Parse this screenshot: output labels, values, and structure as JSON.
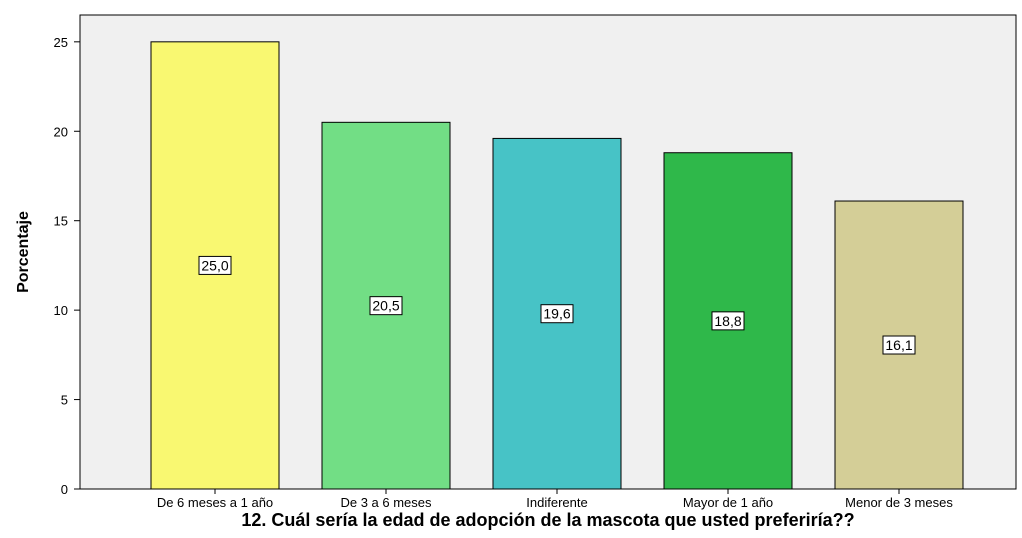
{
  "chart_data": {
    "type": "bar",
    "categories": [
      "De 6 meses a 1 año",
      "De 3 a 6 meses",
      "Indiferente",
      "Mayor de 1 año",
      "Menor de 3 meses"
    ],
    "values": [
      25.0,
      20.5,
      19.6,
      18.8,
      16.1
    ],
    "data_labels": [
      "25,0",
      "20,5",
      "19,6",
      "18,8",
      "16,1"
    ],
    "colors": [
      "#f9f871",
      "#72de85",
      "#47c3c6",
      "#2fb84a",
      "#d4ce97"
    ],
    "plot_background": "#f0f0f0",
    "xlabel": "12. Cuál sería la edad de adopción de la mascota que usted preferiría??",
    "ylabel": "Porcentaje",
    "ylim": [
      0,
      26.5
    ],
    "yticks": [
      0,
      5,
      10,
      15,
      20,
      25
    ],
    "grid": false
  }
}
